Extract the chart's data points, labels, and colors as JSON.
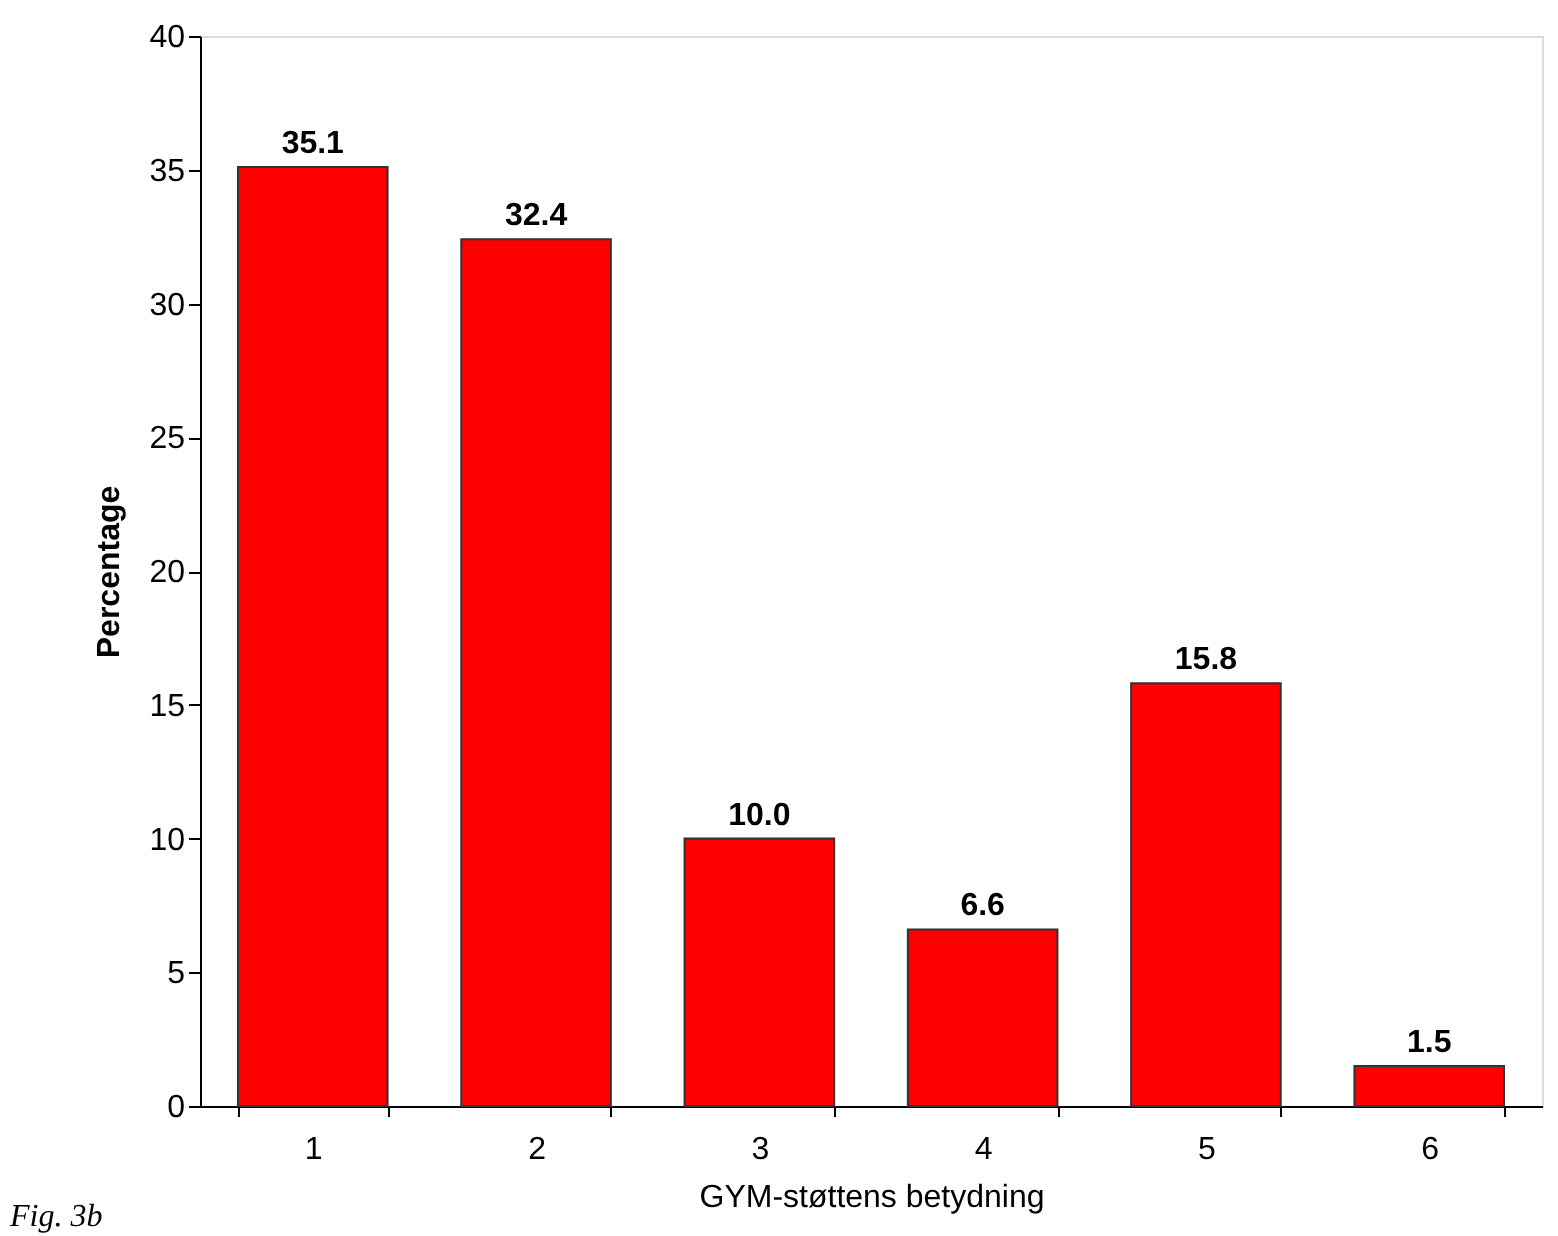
{
  "chart_data": {
    "type": "bar",
    "xlabel": "GYM-støttens betydning",
    "ylabel": "Percentage",
    "categories": [
      "1",
      "2",
      "3",
      "4",
      "5",
      "6"
    ],
    "values": [
      35.1,
      32.4,
      10.0,
      6.6,
      15.8,
      1.5
    ],
    "value_labels": [
      "35.1",
      "32.4",
      "10.0",
      "6.6",
      "15.8",
      "1.5"
    ],
    "color": "#ff0000",
    "ylim": [
      0,
      40
    ],
    "yticks": [
      0,
      5,
      10,
      15,
      20,
      25,
      30,
      35,
      40
    ],
    "grid": false,
    "annotations": [
      "Fig. 3b"
    ]
  }
}
